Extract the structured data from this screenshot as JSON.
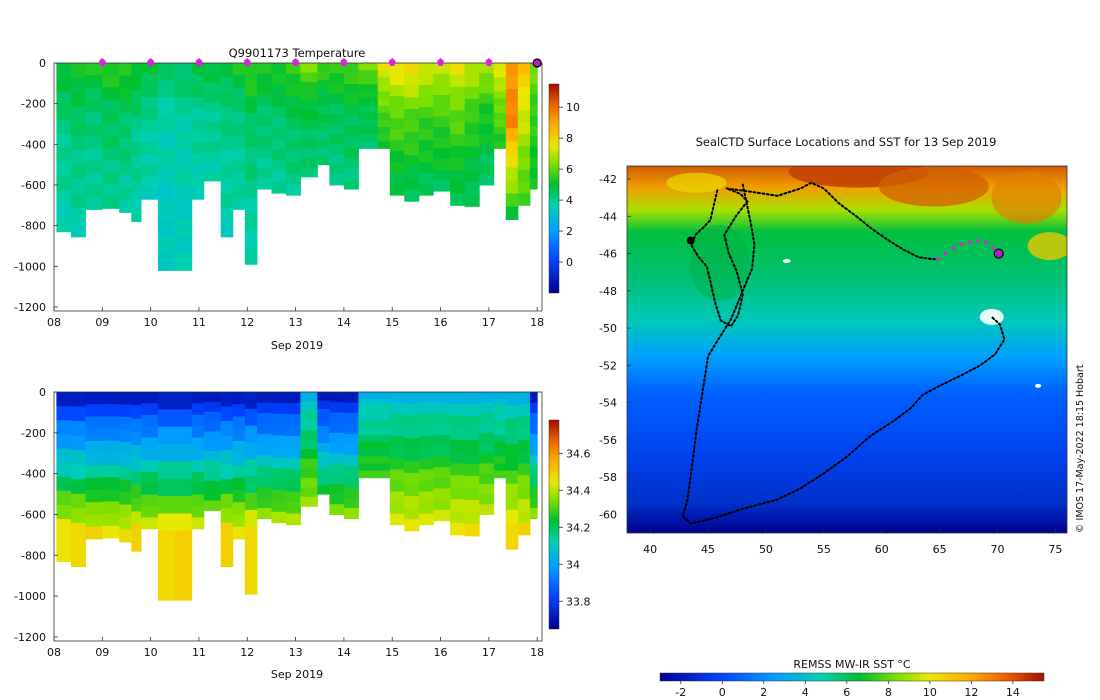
{
  "chart_data": [
    {
      "type": "heatmap",
      "title": "Q9901173  Temperature",
      "xlabel": "Sep 2019",
      "x_ticks": [
        "08",
        "09",
        "10",
        "11",
        "12",
        "13",
        "14",
        "15",
        "16",
        "17",
        "18"
      ],
      "x_range": [
        8,
        18.1
      ],
      "y_ticks": [
        0,
        -200,
        -400,
        -600,
        -800,
        -1000,
        -1200
      ],
      "ylim": [
        -1220,
        0
      ],
      "colorbar": {
        "range": [
          -2,
          11.5
        ],
        "ticks": [
          0,
          2,
          4,
          6,
          8,
          10
        ]
      },
      "profile_markers_days": [
        9,
        10,
        11,
        12,
        13,
        14,
        15,
        16,
        17
      ],
      "current_position_day": 18,
      "profiles": [
        {
          "day": 8.05,
          "max_depth": 830,
          "top": 5.2,
          "mid": 4.2,
          "deep": 3.6
        },
        {
          "day": 8.35,
          "max_depth": 855,
          "top": 5.4,
          "mid": 4.4,
          "deep": 3.7
        },
        {
          "day": 8.65,
          "max_depth": 720,
          "top": 5.3,
          "mid": 4.3,
          "deep": 3.8
        },
        {
          "day": 9.0,
          "max_depth": 715,
          "top": 5.5,
          "mid": 4.6,
          "deep": 3.9
        },
        {
          "day": 9.35,
          "max_depth": 735,
          "top": 5.5,
          "mid": 4.5,
          "deep": 3.8
        },
        {
          "day": 9.6,
          "max_depth": 780,
          "top": 5.3,
          "mid": 4.2,
          "deep": 3.7
        },
        {
          "day": 9.8,
          "max_depth": 670,
          "top": 5.2,
          "mid": 4.0,
          "deep": 3.6
        },
        {
          "day": 10.15,
          "max_depth": 1020,
          "top": 4.4,
          "mid": 3.6,
          "deep": 3.3
        },
        {
          "day": 10.5,
          "max_depth": 1020,
          "top": 4.5,
          "mid": 3.7,
          "deep": 3.4
        },
        {
          "day": 10.85,
          "max_depth": 670,
          "top": 4.9,
          "mid": 4.0,
          "deep": 3.6
        },
        {
          "day": 11.1,
          "max_depth": 580,
          "top": 5.1,
          "mid": 4.1,
          "deep": 3.7
        },
        {
          "day": 11.45,
          "max_depth": 855,
          "top": 5.0,
          "mid": 4.1,
          "deep": 3.6
        },
        {
          "day": 11.7,
          "max_depth": 720,
          "top": 5.3,
          "mid": 4.2,
          "deep": 3.7
        },
        {
          "day": 11.95,
          "max_depth": 990,
          "top": 5.6,
          "mid": 4.4,
          "deep": 3.6
        },
        {
          "day": 12.2,
          "max_depth": 620,
          "top": 5.4,
          "mid": 4.5,
          "deep": 3.9
        },
        {
          "day": 12.5,
          "max_depth": 640,
          "top": 5.5,
          "mid": 4.5,
          "deep": 3.9
        },
        {
          "day": 12.8,
          "max_depth": 650,
          "top": 5.8,
          "mid": 4.7,
          "deep": 4.0
        },
        {
          "day": 13.1,
          "max_depth": 560,
          "top": 6.4,
          "mid": 4.9,
          "deep": 4.2
        },
        {
          "day": 13.45,
          "max_depth": 500,
          "top": 5.7,
          "mid": 4.8,
          "deep": 4.2
        },
        {
          "day": 13.7,
          "max_depth": 600,
          "top": 5.6,
          "mid": 4.7,
          "deep": 4.1
        },
        {
          "day": 14.0,
          "max_depth": 620,
          "top": 5.9,
          "mid": 4.8,
          "deep": 4.2
        },
        {
          "day": 14.3,
          "max_depth": 420,
          "top": 6.6,
          "mid": 5.0,
          "deep": 4.4
        },
        {
          "day": 14.7,
          "max_depth": 420,
          "top": 7.6,
          "mid": 6.4,
          "deep": 5.0
        },
        {
          "day": 14.95,
          "max_depth": 650,
          "top": 7.8,
          "mid": 6.1,
          "deep": 4.6
        },
        {
          "day": 15.25,
          "max_depth": 680,
          "top": 8.0,
          "mid": 6.0,
          "deep": 4.5
        },
        {
          "day": 15.55,
          "max_depth": 650,
          "top": 7.5,
          "mid": 5.8,
          "deep": 4.5
        },
        {
          "day": 15.85,
          "max_depth": 630,
          "top": 7.3,
          "mid": 5.8,
          "deep": 4.6
        },
        {
          "day": 16.2,
          "max_depth": 700,
          "top": 7.6,
          "mid": 6.0,
          "deep": 4.5
        },
        {
          "day": 16.5,
          "max_depth": 705,
          "top": 7.1,
          "mid": 5.6,
          "deep": 4.4
        },
        {
          "day": 16.8,
          "max_depth": 600,
          "top": 6.8,
          "mid": 5.4,
          "deep": 4.4
        },
        {
          "day": 17.1,
          "max_depth": 420,
          "top": 7.7,
          "mid": 6.5,
          "deep": 5.2
        },
        {
          "day": 17.35,
          "max_depth": 770,
          "top": 9.2,
          "mid": 9.6,
          "deep": 4.9
        },
        {
          "day": 17.6,
          "max_depth": 700,
          "top": 8.4,
          "mid": 7.2,
          "deep": 5.5
        },
        {
          "day": 17.85,
          "max_depth": 620,
          "top": 6.3,
          "mid": 5.6,
          "deep": 5.0
        }
      ]
    },
    {
      "type": "heatmap",
      "title": "",
      "xlabel": "Sep 2019",
      "x_ticks": [
        "08",
        "09",
        "10",
        "11",
        "12",
        "13",
        "14",
        "15",
        "16",
        "17",
        "18"
      ],
      "x_range": [
        8,
        18.1
      ],
      "y_ticks": [
        0,
        -200,
        -400,
        -600,
        -800,
        -1000,
        -1200
      ],
      "ylim": [
        -1220,
        0
      ],
      "colorbar": {
        "range": [
          33.65,
          34.78
        ],
        "ticks": [
          33.8,
          34,
          34.2,
          34.4,
          34.6
        ]
      },
      "profiles_ref": "same depth profiles as temperature panel (salinity field)"
    },
    {
      "type": "map",
      "title": "SealCTD Surface Locations and SST for 13 Sep 2019",
      "xlim": [
        38,
        76
      ],
      "ylim": [
        -61,
        -41.3
      ],
      "x_ticks": [
        40,
        45,
        50,
        55,
        60,
        65,
        70,
        75
      ],
      "y_ticks": [
        -42,
        -44,
        -46,
        -48,
        -50,
        -52,
        -54,
        -56,
        -58,
        -60
      ],
      "colorbar": {
        "label": "REMSS MW-IR SST °C",
        "range": [
          -3,
          15.5
        ],
        "ticks": [
          -2,
          0,
          2,
          4,
          6,
          8,
          10,
          12,
          14
        ]
      },
      "current_position": {
        "lon": 70.1,
        "lat": -46.0
      },
      "recent_positions": [
        [
          64.8,
          -46.3
        ],
        [
          65.5,
          -46.0
        ],
        [
          66.2,
          -45.7
        ],
        [
          66.9,
          -45.5
        ],
        [
          67.6,
          -45.4
        ],
        [
          68.3,
          -45.3
        ],
        [
          69.0,
          -45.4
        ],
        [
          69.6,
          -45.7
        ]
      ],
      "track": [
        [
          45.8,
          -42.6
        ],
        [
          45.5,
          -43.4
        ],
        [
          45.2,
          -44.2
        ],
        [
          44.6,
          -44.6
        ],
        [
          43.9,
          -45.0
        ],
        [
          43.6,
          -45.6
        ],
        [
          44.2,
          -46.2
        ],
        [
          44.9,
          -46.7
        ],
        [
          45.2,
          -47.5
        ],
        [
          45.6,
          -48.6
        ],
        [
          46.1,
          -49.6
        ],
        [
          47.0,
          -49.9
        ],
        [
          47.6,
          -49.3
        ],
        [
          48.0,
          -48.2
        ],
        [
          47.5,
          -47.0
        ],
        [
          46.8,
          -46.0
        ],
        [
          46.4,
          -45.0
        ],
        [
          47.4,
          -44.0
        ],
        [
          48.4,
          -43.2
        ],
        [
          47.8,
          -42.8
        ],
        [
          46.6,
          -42.5
        ],
        [
          48.9,
          -42.7
        ],
        [
          51.0,
          -42.9
        ],
        [
          53.0,
          -42.5
        ],
        [
          53.9,
          -42.2
        ],
        [
          55.0,
          -42.5
        ],
        [
          56.3,
          -43.3
        ],
        [
          57.8,
          -44.0
        ],
        [
          59.2,
          -44.7
        ],
        [
          60.6,
          -45.3
        ],
        [
          61.9,
          -45.8
        ],
        [
          63.2,
          -46.2
        ],
        [
          64.4,
          -46.3
        ],
        [
          64.8,
          -46.3
        ]
      ],
      "track2": [
        [
          48.0,
          -42.3
        ],
        [
          48.3,
          -43.2
        ],
        [
          48.7,
          -44.4
        ],
        [
          49.0,
          -45.5
        ],
        [
          48.8,
          -46.8
        ],
        [
          48.0,
          -48.0
        ],
        [
          47.0,
          -49.5
        ],
        [
          46.0,
          -50.5
        ],
        [
          45.0,
          -51.5
        ],
        [
          44.5,
          -53.5
        ],
        [
          44.0,
          -55.5
        ],
        [
          43.6,
          -57.5
        ],
        [
          43.2,
          -59.3
        ],
        [
          42.8,
          -60.1
        ],
        [
          43.5,
          -60.5
        ],
        [
          45.5,
          -60.2
        ],
        [
          48.0,
          -59.7
        ],
        [
          51.0,
          -59.2
        ],
        [
          53.0,
          -58.6
        ],
        [
          55.0,
          -57.8
        ],
        [
          57.0,
          -56.9
        ],
        [
          59.0,
          -55.8
        ],
        [
          61.0,
          -55.0
        ],
        [
          62.5,
          -54.3
        ],
        [
          63.5,
          -53.6
        ],
        [
          65.0,
          -53.1
        ],
        [
          67.0,
          -52.5
        ],
        [
          68.5,
          -52.0
        ],
        [
          69.8,
          -51.4
        ],
        [
          70.6,
          -50.6
        ],
        [
          70.2,
          -49.8
        ],
        [
          69.5,
          -49.4
        ]
      ],
      "credit": "© IMOS 17-May-2022 18:15 Hobart"
    }
  ]
}
